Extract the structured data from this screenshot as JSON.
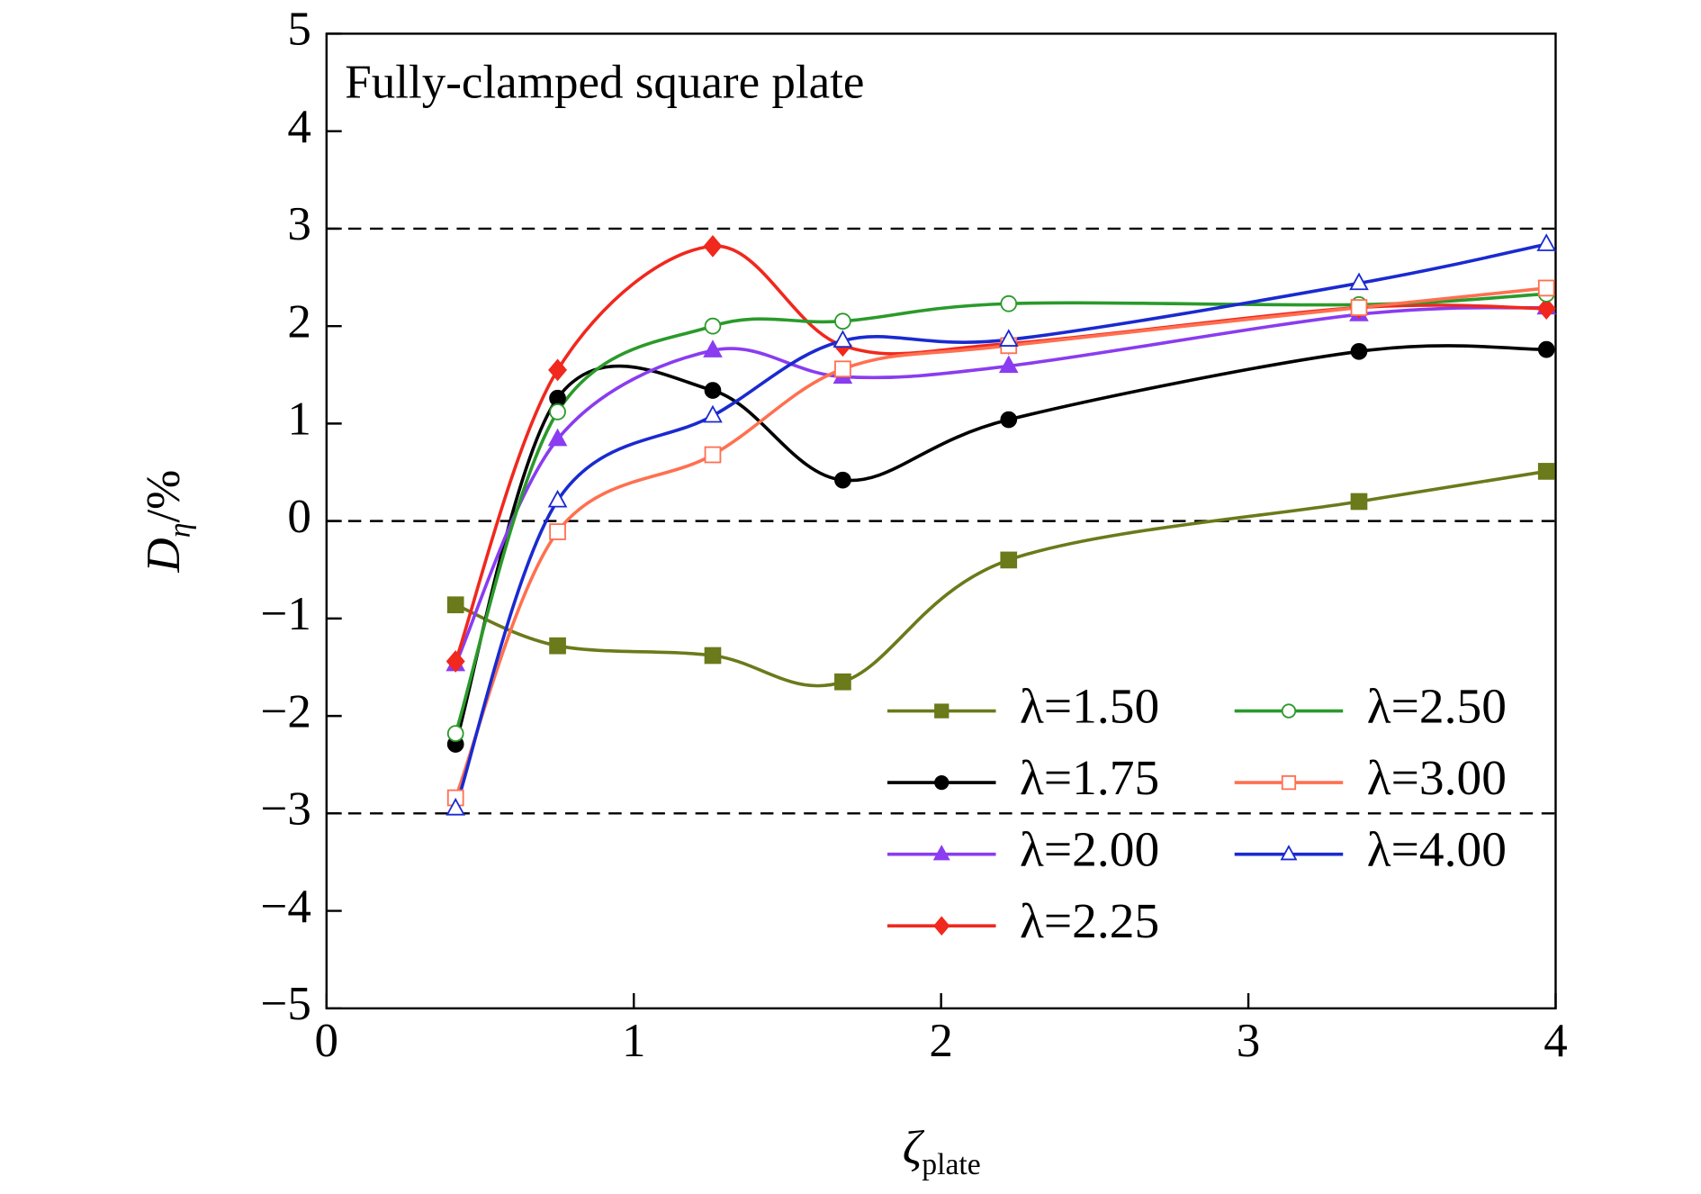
{
  "chart_data": {
    "type": "line",
    "annotation": "Fully-clamped square plate",
    "xlabel": "ζ",
    "xlabel_sub": "plate",
    "ylabel": "D",
    "ylabel_sub": "η",
    "ylabel_suffix": "/%",
    "xlim": [
      0,
      4
    ],
    "xticks": [
      0,
      1,
      2,
      3,
      4
    ],
    "ylim": [
      -5,
      5
    ],
    "yticks": [
      -5,
      -4,
      -3,
      -2,
      -1,
      0,
      1,
      2,
      3,
      4,
      5
    ],
    "hlines": [
      -3,
      0,
      3
    ],
    "smooth": true,
    "x": [
      0.42,
      0.752,
      1.257,
      1.68,
      2.22,
      3.36,
      3.97
    ],
    "series": [
      {
        "name": "λ=1.50",
        "color": "#6b7a1a",
        "marker": "square",
        "filled": true,
        "values": [
          -0.86,
          -1.28,
          -1.38,
          -1.65,
          -0.4,
          0.2,
          0.51
        ]
      },
      {
        "name": "λ=1.75",
        "color": "#000000",
        "marker": "circle",
        "filled": true,
        "values": [
          -2.29,
          1.26,
          1.34,
          0.42,
          1.04,
          1.74,
          1.76
        ]
      },
      {
        "name": "λ=2.00",
        "color": "#8a3cf0",
        "marker": "triangle",
        "filled": true,
        "values": [
          -1.47,
          0.84,
          1.75,
          1.48,
          1.59,
          2.12,
          2.19
        ]
      },
      {
        "name": "λ=2.25",
        "color": "#f0281e",
        "marker": "diamond",
        "filled": true,
        "values": [
          -1.44,
          1.55,
          2.82,
          1.8,
          1.82,
          2.19,
          2.18
        ]
      },
      {
        "name": "λ=2.50",
        "color": "#2a9a2a",
        "marker": "circle",
        "filled": false,
        "values": [
          -2.18,
          1.12,
          2.0,
          2.05,
          2.23,
          2.22,
          2.33
        ]
      },
      {
        "name": "λ=3.00",
        "color": "#ff7050",
        "marker": "square",
        "filled": false,
        "values": [
          -2.84,
          -0.11,
          0.68,
          1.56,
          1.8,
          2.19,
          2.39
        ]
      },
      {
        "name": "λ=4.00",
        "color": "#1a2ad0",
        "marker": "triangle",
        "filled": false,
        "values": [
          -2.95,
          0.21,
          1.08,
          1.85,
          1.86,
          2.44,
          2.84
        ]
      }
    ]
  }
}
